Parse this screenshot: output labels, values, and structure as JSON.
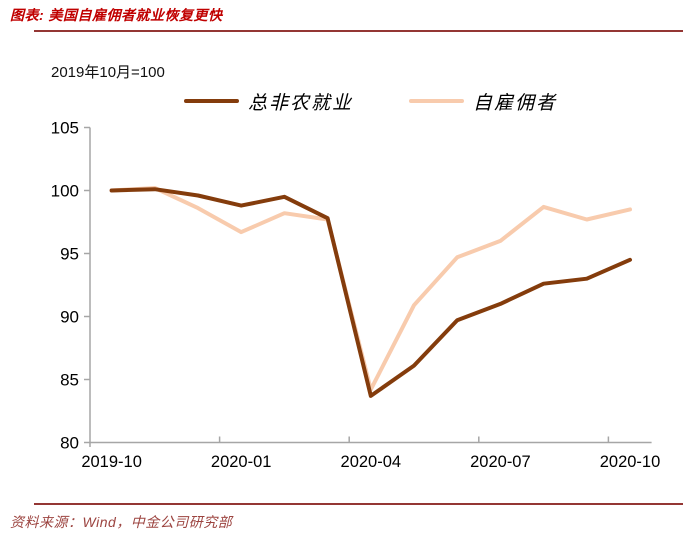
{
  "header": {
    "title": "图表: 美国自雇佣者就业恢复更快"
  },
  "subtitle": "2019年10月=100",
  "footer": {
    "source": "资料来源：Wind，中金公司研究部"
  },
  "colors": {
    "title_red": "#C00000",
    "rule_red": "#943634",
    "source_red": "#9C4440",
    "axis_grey": "#A6A6A6",
    "tick_label": "#000000"
  },
  "chart_data": {
    "type": "line",
    "title": "美国自雇佣者就业恢复更快",
    "unit_note": "2019年10月=100",
    "categories": [
      "2019-10",
      "2019-11",
      "2019-12",
      "2020-01",
      "2020-02",
      "2020-03",
      "2020-04",
      "2020-05",
      "2020-06",
      "2020-07",
      "2020-08",
      "2020-09",
      "2020-10"
    ],
    "x_tick_label_every": 3,
    "x_tick_labels_shown": [
      "2019-10",
      "2020-01",
      "2020-04",
      "2020-07",
      "2020-10"
    ],
    "series": [
      {
        "name": "总非农就业",
        "color": "#843C0C",
        "values": [
          100.0,
          100.1,
          99.6,
          98.8,
          99.5,
          97.8,
          83.7,
          86.1,
          89.7,
          91.0,
          92.6,
          93.0,
          94.5
        ]
      },
      {
        "name": "自雇佣者",
        "color": "#F8CBAD",
        "values": [
          100.0,
          100.2,
          98.6,
          96.7,
          98.2,
          97.7,
          84.2,
          90.9,
          94.7,
          96.0,
          98.7,
          97.7,
          98.5
        ]
      }
    ],
    "ylim": [
      80,
      105
    ],
    "ytick_step": 5,
    "yticks": [
      80,
      85,
      90,
      95,
      100,
      105
    ],
    "grid": false,
    "legend_position": "top"
  }
}
